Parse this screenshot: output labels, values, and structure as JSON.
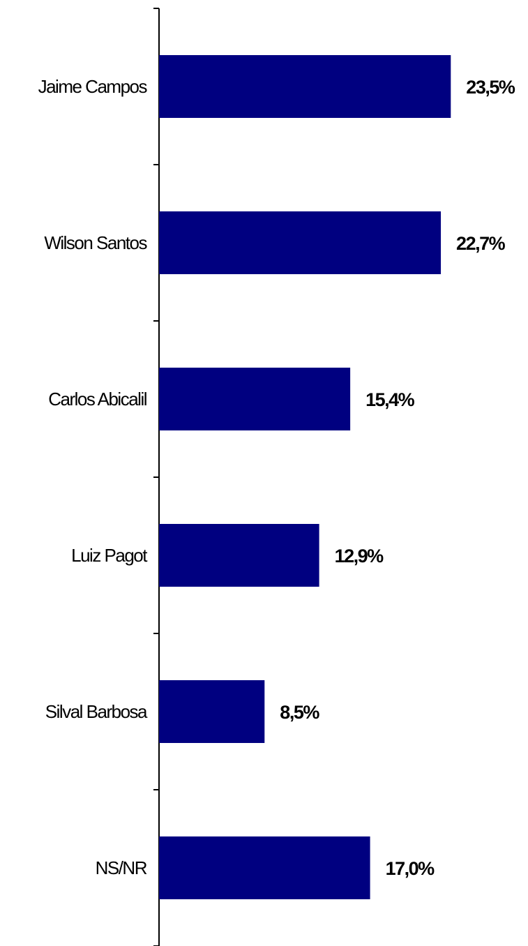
{
  "chart_data": {
    "type": "bar",
    "orientation": "horizontal",
    "categories": [
      "Jaime Campos",
      "Wilson Santos",
      "Carlos Abicalil",
      "Luiz Pagot",
      "Silval Barbosa",
      "NS/NR"
    ],
    "values": [
      23.5,
      22.7,
      15.4,
      12.9,
      8.5,
      17.0
    ],
    "value_labels": [
      "23,5%",
      "22,7%",
      "15,4%",
      "12,9%",
      "8,5%",
      "17,0%"
    ],
    "title": "",
    "xlabel": "",
    "ylabel": "",
    "xlim": [
      0,
      30
    ],
    "grid": false,
    "legend": "none",
    "bar_color": "#000080"
  }
}
